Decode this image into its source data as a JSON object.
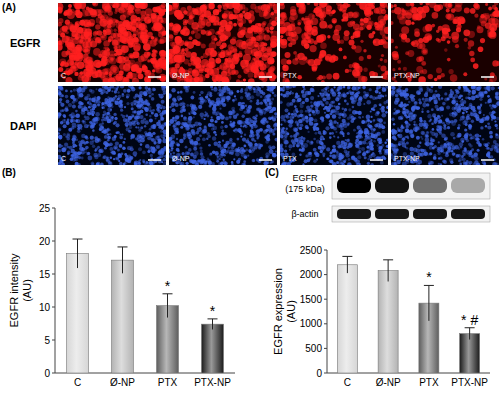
{
  "figure": {
    "panels": [
      "(A)"
    ],
    "image_rows": [
      "EGFR",
      "DAPI"
    ],
    "image_labels": [
      "C",
      "Ø-NP",
      "PTX",
      "PTX-NP"
    ]
  },
  "blot": {
    "labels": [
      "EGFR\n(175 kDa)",
      "β-actin"
    ]
  },
  "chart_data": [
    {
      "type": "bar",
      "panel": "(B)",
      "ylabel": "EGFR intensity\n(AU)",
      "categories": [
        "C",
        "Ø-NP",
        "PTX",
        "PTX-NP"
      ],
      "values": [
        18.1,
        17.1,
        10.2,
        7.4
      ],
      "errors": [
        2.2,
        2.0,
        1.8,
        0.8
      ],
      "significance": [
        null,
        null,
        "*",
        "*"
      ],
      "colors": [
        "#d6d6d6",
        "#b3b3b3",
        "#5e5e5e",
        "#1c1c1c"
      ],
      "ylim": [
        0,
        25
      ],
      "yticks": [
        0,
        5,
        10,
        15,
        20,
        25
      ]
    },
    {
      "type": "bar",
      "panel": "(C)",
      "ylabel": "EGFR expression\n(AU)",
      "categories": [
        "C",
        "Ø-NP",
        "PTX",
        "PTX-NP"
      ],
      "values": [
        2200,
        2080,
        1420,
        800
      ],
      "errors": [
        170,
        220,
        360,
        120
      ],
      "significance": [
        null,
        null,
        "*",
        "* #"
      ],
      "colors": [
        "#d6d6d6",
        "#b3b3b3",
        "#5e5e5e",
        "#1c1c1c"
      ],
      "ylim": [
        0,
        2500
      ],
      "yticks": [
        0,
        500,
        1000,
        1500,
        2000,
        2500
      ]
    }
  ]
}
